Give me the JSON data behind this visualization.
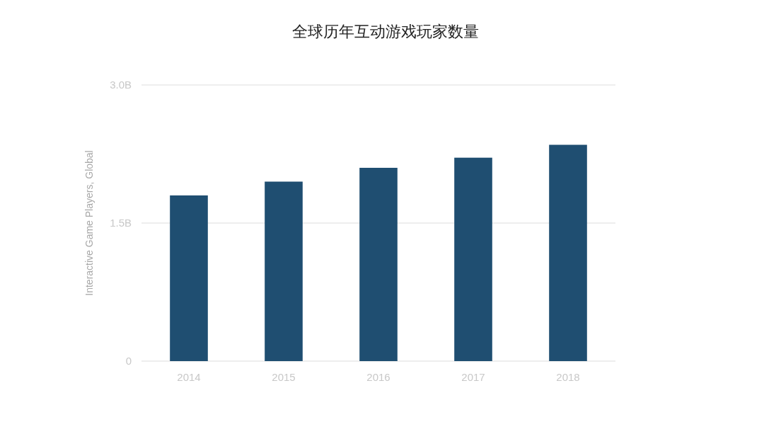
{
  "chart_data": {
    "type": "bar",
    "title": "全球历年互动游戏玩家数量",
    "ylabel": "Interactive Game Players, Global",
    "categories": [
      "2014",
      "2015",
      "2016",
      "2017",
      "2018"
    ],
    "values": [
      1.8,
      1.95,
      2.1,
      2.21,
      2.35
    ],
    "color": "#1f4e71",
    "ylim": [
      0,
      3
    ],
    "yticks": [
      {
        "value": 0,
        "label": "0"
      },
      {
        "value": 1.5,
        "label": "1.5B"
      },
      {
        "value": 3,
        "label": "3.0B"
      }
    ],
    "grid": "y"
  }
}
